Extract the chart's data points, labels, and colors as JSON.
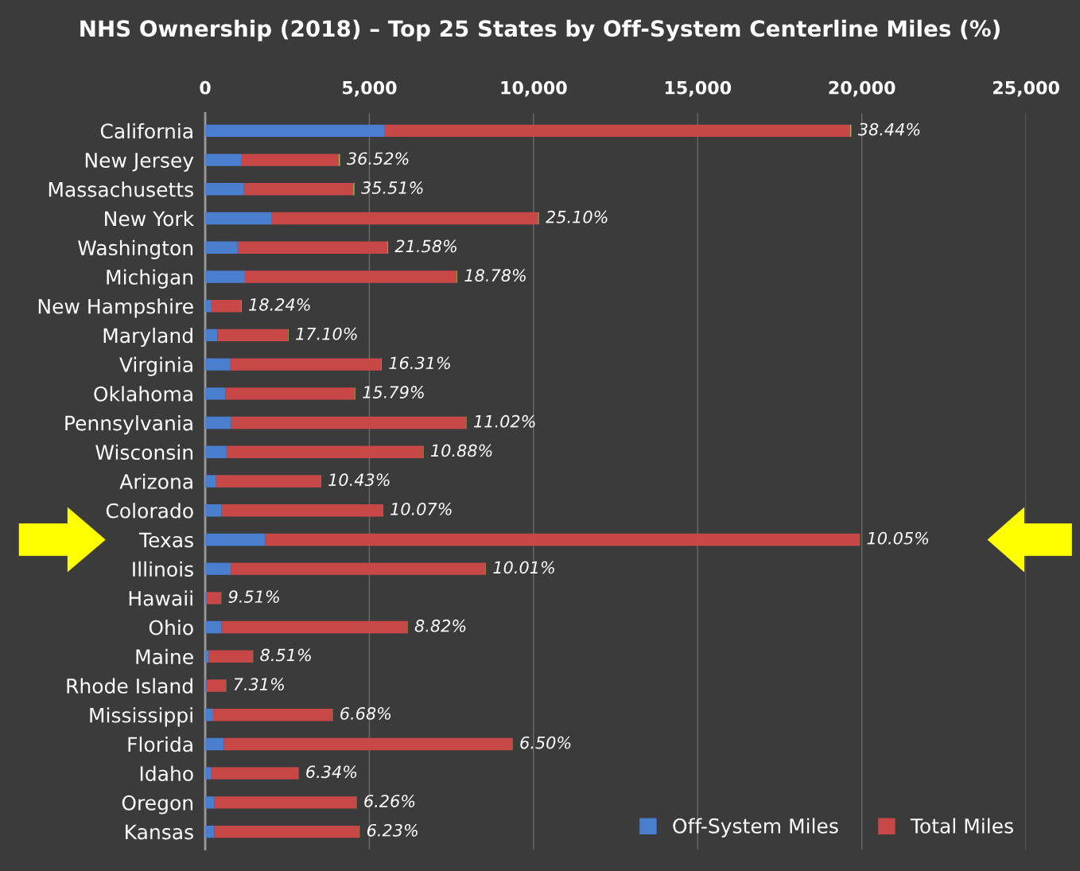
{
  "chart_data": {
    "type": "bar",
    "orientation": "horizontal",
    "stacked": true,
    "title": "NHS Ownership (2018) – Top 25 States by Off-System Centerline Miles (%)",
    "categories": [
      "California",
      "New Jersey",
      "Massachusetts",
      "New York",
      "Washington",
      "Michigan",
      "New Hampshire",
      "Maryland",
      "Virginia",
      "Oklahoma",
      "Pennsylvania",
      "Wisconsin",
      "Arizona",
      "Colorado",
      "Texas",
      "Illinois",
      "Hawaii",
      "Ohio",
      "Maine",
      "Rhode Island",
      "Mississippi",
      "Florida",
      "Idaho",
      "Oregon",
      "Kansas"
    ],
    "series": [
      {
        "name": "Off-System Miles",
        "color": "#4a7fd0",
        "values": [
          5450,
          1090,
          1180,
          2030,
          990,
          1210,
          170,
          370,
          750,
          620,
          790,
          650,
          330,
          500,
          1820,
          780,
          40,
          500,
          110,
          40,
          240,
          570,
          170,
          270,
          280
        ]
      },
      {
        "name": "Total Miles",
        "color": "#c84848",
        "values": [
          14190,
          2980,
          3330,
          8110,
          4560,
          6450,
          920,
          2150,
          4610,
          3940,
          7160,
          5990,
          3190,
          4910,
          18110,
          7760,
          440,
          5660,
          1340,
          590,
          3640,
          8790,
          2670,
          4340,
          4420
        ]
      },
      {
        "color": "#9bbb59",
        "values": [
          38.44,
          36.52,
          35.51,
          25.1,
          21.58,
          18.78,
          18.24,
          17.1,
          16.31,
          15.79,
          11.02,
          10.88,
          10.43,
          10.07,
          10.05,
          10.01,
          9.51,
          8.82,
          8.51,
          7.31,
          6.68,
          6.5,
          6.34,
          6.26,
          6.23
        ],
        "value_labels": [
          "38.44%",
          "36.52%",
          "35.51%",
          "25.10%",
          "21.58%",
          "18.78%",
          "18.24%",
          "17.10%",
          "16.31%",
          "15.79%",
          "11.02%",
          "10.88%",
          "10.43%",
          "10.07%",
          "10.05%",
          "10.01%",
          "9.51%",
          "8.82%",
          "8.51%",
          "7.31%",
          "6.68%",
          "6.50%",
          "6.34%",
          "6.26%",
          "6.23%"
        ]
      }
    ],
    "xlim": [
      0,
      25000
    ],
    "xticks": [
      {
        "value": 0,
        "label": "0"
      },
      {
        "value": 5000,
        "label": "5,000"
      },
      {
        "value": 10000,
        "label": "10,000"
      },
      {
        "value": 15000,
        "label": "15,000"
      },
      {
        "value": 20000,
        "label": "20,000"
      },
      {
        "value": 25000,
        "label": "25,000"
      }
    ],
    "grid": "x",
    "legend": "bottom right"
  }
}
